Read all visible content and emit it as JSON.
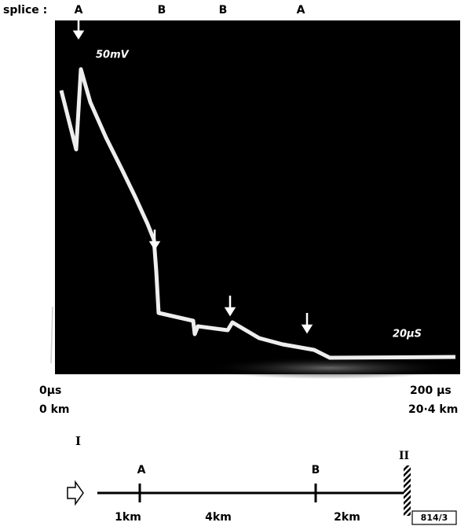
{
  "splice_row": {
    "label": "splice :",
    "marks": [
      "A",
      "B",
      "B",
      "A"
    ]
  },
  "screen": {
    "vertical_scale": "50mV",
    "time_scale": "20µS"
  },
  "axis": {
    "start_time": "0µs",
    "start_distance": "0 km",
    "end_time": "200 µs",
    "end_distance": "20·4 km"
  },
  "cable": {
    "end_left": "I",
    "end_right": "II",
    "splices": [
      "A",
      "B"
    ],
    "segments": [
      "1km",
      "4km",
      "2km"
    ],
    "figure_id": "814/3"
  }
}
